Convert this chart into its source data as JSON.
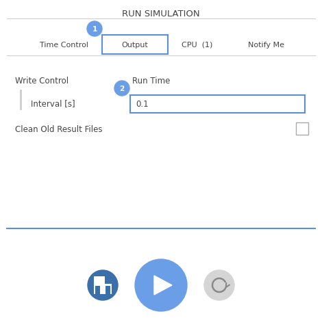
{
  "title": "RUN SIMULATION",
  "bg_color": "#ffffff",
  "tab_labels": [
    "Time Control",
    "Output",
    "CPU  (1)",
    "Notify Me"
  ],
  "active_tab": 1,
  "tab_active_color": "#5b8fd9",
  "separator_color": "#d0d0d0",
  "badge1_color": "#6a9fe8",
  "badge1_text": "1",
  "badge2_color": "#6a9fe8",
  "badge2_text": "2",
  "section1_label": "Write Control",
  "section2_label": "Run Time",
  "field_label": "Interval [s]",
  "field_value": "0.1",
  "checkbox_label": "Clean Old Result Files",
  "input_border_color": "#5b8fd9",
  "vbar_color": "#cccccc",
  "bottom_line_color": "#5b8fd9",
  "play_btn_color": "#6a9fe8",
  "save_btn_color": "#3a6faa",
  "reset_btn_color": "#d5d5d5",
  "text_color": "#444444"
}
